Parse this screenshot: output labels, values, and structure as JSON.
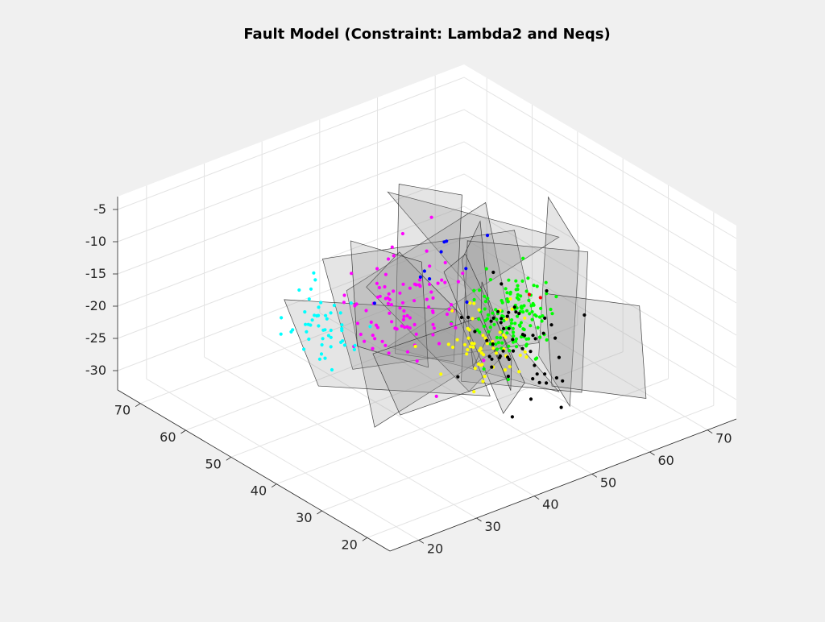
{
  "window": {
    "background": "#f0f0f0",
    "axes_background": "#ffffff"
  },
  "chart_data": {
    "type": "scatter3d",
    "title": "Fault Model (Constraint: Lambda2 and Neqs)",
    "xlabel": "",
    "ylabel": "",
    "zlabel": "",
    "xlim": [
      15,
      75
    ],
    "ylim": [
      15,
      75
    ],
    "zlim": [
      -33,
      -3
    ],
    "grid": true,
    "legend": "none",
    "x_ticks": [
      "20",
      "30",
      "40",
      "50",
      "60",
      "70"
    ],
    "x_tick_values": [
      20,
      30,
      40,
      50,
      60,
      70
    ],
    "y_ticks": [
      "20",
      "30",
      "40",
      "50",
      "60",
      "70"
    ],
    "y_tick_values": [
      20,
      30,
      40,
      50,
      60,
      70
    ],
    "z_ticks": [
      "-5",
      "-10",
      "-15",
      "-20",
      "-25",
      "-30"
    ],
    "z_tick_values": [
      -5,
      -10,
      -15,
      -20,
      -25,
      -30
    ],
    "planes": [
      [
        [
          50,
          60,
          -8
        ],
        [
          60,
          35,
          -8
        ],
        [
          50,
          60,
          -32
        ],
        [
          60,
          35,
          -32
        ]
      ],
      [
        [
          35,
          50,
          -14
        ],
        [
          63,
          55,
          -12
        ],
        [
          60,
          45,
          -28
        ],
        [
          32,
          40,
          -30
        ]
      ],
      [
        [
          45,
          68,
          -20
        ],
        [
          68,
          55,
          -18
        ],
        [
          62,
          42,
          -28
        ],
        [
          40,
          55,
          -30
        ]
      ],
      [
        [
          48,
          55,
          -4
        ],
        [
          55,
          50,
          -6
        ],
        [
          52,
          48,
          -30
        ],
        [
          45,
          52,
          -28
        ]
      ],
      [
        [
          58,
          28,
          -6
        ],
        [
          66,
          45,
          -8
        ],
        [
          62,
          42,
          -30
        ],
        [
          54,
          25,
          -28
        ]
      ],
      [
        [
          40,
          52,
          -16
        ],
        [
          52,
          60,
          -18
        ],
        [
          58,
          45,
          -30
        ],
        [
          46,
          37,
          -28
        ]
      ],
      [
        [
          52,
          45,
          -10
        ],
        [
          65,
          35,
          -12
        ],
        [
          60,
          30,
          -30
        ],
        [
          47,
          40,
          -28
        ]
      ],
      [
        [
          36,
          65,
          -22
        ],
        [
          50,
          45,
          -20
        ],
        [
          52,
          40,
          -32
        ],
        [
          38,
          60,
          -34
        ]
      ],
      [
        [
          55,
          50,
          -16
        ],
        [
          66,
          60,
          -18
        ],
        [
          64,
          55,
          -32
        ],
        [
          53,
          45,
          -30
        ]
      ],
      [
        [
          44,
          40,
          -10
        ],
        [
          54,
          48,
          -14
        ],
        [
          58,
          40,
          -32
        ],
        [
          48,
          32,
          -30
        ]
      ],
      [
        [
          60,
          38,
          -18
        ],
        [
          70,
          30,
          -20
        ],
        [
          68,
          26,
          -32
        ],
        [
          58,
          34,
          -30
        ]
      ],
      [
        [
          42,
          58,
          -12
        ],
        [
          48,
          50,
          -14
        ],
        [
          46,
          46,
          -28
        ],
        [
          40,
          54,
          -26
        ]
      ],
      [
        [
          52,
          42,
          -20
        ],
        [
          60,
          52,
          -22
        ],
        [
          62,
          48,
          -33
        ],
        [
          54,
          38,
          -31
        ]
      ],
      [
        [
          38,
          48,
          -24
        ],
        [
          58,
          50,
          -26
        ],
        [
          58,
          44,
          -33
        ],
        [
          38,
          42,
          -31
        ]
      ]
    ],
    "series": [
      {
        "color": "#00ff00",
        "center": [
          48,
          30,
          -14
        ],
        "spread": [
          5,
          4,
          5
        ],
        "count": 130
      },
      {
        "color": "#ff00ff",
        "center": [
          50,
          55,
          -24
        ],
        "spread": [
          7,
          7,
          6
        ],
        "count": 95
      },
      {
        "color": "#00ffff",
        "center": [
          38,
          60,
          -25
        ],
        "spread": [
          4,
          6,
          6
        ],
        "count": 50
      },
      {
        "color": "#ffff00",
        "center": [
          50,
          40,
          -23
        ],
        "spread": [
          5,
          5,
          4
        ],
        "count": 55
      },
      {
        "color": "#000000",
        "center": [
          55,
          40,
          -25
        ],
        "spread": [
          6,
          6,
          6
        ],
        "count": 55
      },
      {
        "color": "#0000ff",
        "center": [
          50,
          50,
          -18
        ],
        "spread": [
          8,
          8,
          6
        ],
        "count": 10
      },
      {
        "color": "#ff0000",
        "center": [
          72,
          55,
          -30
        ],
        "spread": [
          1.5,
          1.5,
          0.5
        ],
        "count": 2
      }
    ]
  }
}
